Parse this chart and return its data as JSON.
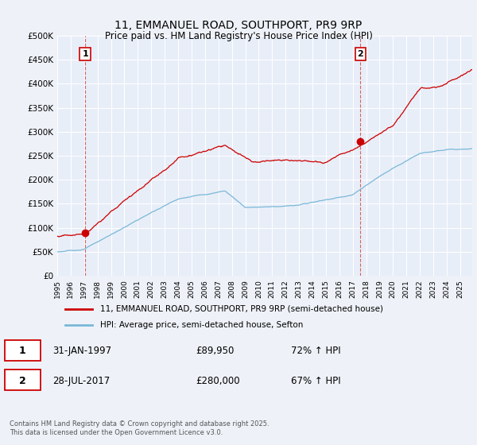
{
  "title": "11, EMMANUEL ROAD, SOUTHPORT, PR9 9RP",
  "subtitle": "Price paid vs. HM Land Registry's House Price Index (HPI)",
  "background_color": "#eef2f8",
  "plot_bg_color": "#e8eef8",
  "line1_color": "#cc0000",
  "line2_color": "#7ab8d8",
  "marker_color": "#cc0000",
  "vline_color": "#cc0000",
  "ylim": [
    0,
    500000
  ],
  "yticks": [
    0,
    50000,
    100000,
    150000,
    200000,
    250000,
    300000,
    350000,
    400000,
    450000,
    500000
  ],
  "ytick_labels": [
    "£0",
    "£50K",
    "£100K",
    "£150K",
    "£200K",
    "£250K",
    "£300K",
    "£350K",
    "£400K",
    "£450K",
    "£500K"
  ],
  "legend1_label": "11, EMMANUEL ROAD, SOUTHPORT, PR9 9RP (semi-detached house)",
  "legend2_label": "HPI: Average price, semi-detached house, Sefton",
  "annotation1_label": "1",
  "annotation1_date": "31-JAN-1997",
  "annotation1_price": "£89,950",
  "annotation1_hpi": "72% ↑ HPI",
  "annotation2_label": "2",
  "annotation2_date": "28-JUL-2017",
  "annotation2_price": "£280,000",
  "annotation2_hpi": "67% ↑ HPI",
  "footer": "Contains HM Land Registry data © Crown copyright and database right 2025.\nThis data is licensed under the Open Government Licence v3.0.",
  "sale1_x": 1997.08,
  "sale1_y": 89950,
  "sale2_x": 2017.57,
  "sale2_y": 280000,
  "xmin": 1995.0,
  "xmax": 2025.9
}
